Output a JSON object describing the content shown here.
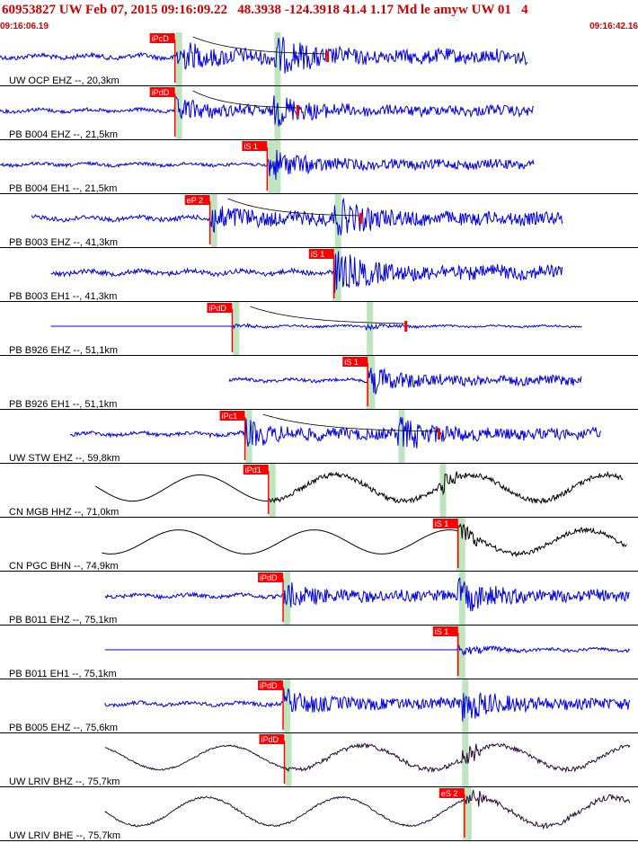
{
  "header": {
    "title": "60953827 UW Feb 07, 2015 09:16:09.22   48.3938 -124.3918 41.4 1.17 Md le amyw UW 01   4",
    "time_start": "09:16:06.19",
    "time_end": "09:16:42.16"
  },
  "colors": {
    "header_text": "#cc0000",
    "pick_box": "#ff0000",
    "pick_text": "#ffffff",
    "waveform_blue": "#0000dd",
    "waveform_black": "#000000",
    "waveform_purple": "#2a0a3a",
    "window_highlight": "#bfe5bf",
    "coda_line": "#000000",
    "separator": "#000000"
  },
  "chart_data": {
    "type": "line",
    "title": "60953827 UW Feb 07, 2015 09:16:09.22",
    "x_range_label": [
      "09:16:06.19",
      "09:16:42.16"
    ],
    "traces": [
      {
        "label": "UW OCP EHZ --, 20,3km",
        "color": "waveform_blue",
        "style": "hf",
        "start": 0.0,
        "end": 0.83,
        "pick_label": "iPcD",
        "pick": 0.275,
        "s": 0.43,
        "coda": true,
        "coda_mark": 0.515,
        "amp": 0.8
      },
      {
        "label": "PB B004 EHZ --, 21,5km",
        "color": "waveform_blue",
        "style": "hf",
        "start": 0.0,
        "end": 0.84,
        "pick_label": "iPdD",
        "pick": 0.275,
        "s": 0.43,
        "coda": true,
        "coda_mark": 0.468,
        "amp": 0.6
      },
      {
        "label": "PB B004 EH1 --, 21,5km",
        "color": "waveform_blue",
        "style": "hf",
        "start": 0.0,
        "end": 0.84,
        "pick_label": "iS 1",
        "pick": 0.42,
        "s": 0.43,
        "coda": false,
        "coda_mark": null,
        "amp": 0.55
      },
      {
        "label": "PB B003 EHZ --, 41,3km",
        "color": "waveform_blue",
        "style": "hf",
        "start": 0.05,
        "end": 0.885,
        "pick_label": "eP 2",
        "pick": 0.33,
        "s": 0.525,
        "coda": true,
        "coda_mark": 0.567,
        "amp": 0.75
      },
      {
        "label": "PB B003 EH1 --, 41,3km",
        "color": "waveform_blue",
        "style": "hf",
        "start": 0.08,
        "end": 0.885,
        "pick_label": "iS 1",
        "pick": 0.525,
        "s": 0.525,
        "coda": false,
        "coda_mark": null,
        "amp": 0.8
      },
      {
        "label": "PB B926 EHZ --, 51,1km",
        "color": "waveform_blue",
        "style": "flat",
        "start": 0.08,
        "end": 0.915,
        "pick_label": "iPdD",
        "pick": 0.365,
        "s": 0.575,
        "coda": true,
        "coda_mark": 0.638,
        "amp": 0.3
      },
      {
        "label": "PB B926 EH1 --, 51,1km",
        "color": "waveform_blue",
        "style": "hf",
        "start": 0.36,
        "end": 0.915,
        "pick_label": "iS 1",
        "pick": 0.578,
        "s": 0.578,
        "coda": false,
        "coda_mark": null,
        "amp": 0.55
      },
      {
        "label": "UW STW EHZ --, 59,8km",
        "color": "waveform_blue",
        "style": "hf",
        "start": 0.11,
        "end": 0.945,
        "pick_label": "iPc1",
        "pick": 0.385,
        "s": 0.625,
        "coda": true,
        "coda_mark": 0.69,
        "amp": 0.65
      },
      {
        "label": "CN MGB HHZ --, 71,0km",
        "color": "waveform_black",
        "style": "lp",
        "start": 0.15,
        "end": 0.98,
        "pick_label": "iPd1",
        "pick": 0.422,
        "s": 0.69,
        "coda": false,
        "coda_mark": null,
        "amp": 0.6
      },
      {
        "label": "CN PGC BHN --, 74,9km",
        "color": "waveform_black",
        "style": "lp",
        "start": 0.16,
        "end": 0.985,
        "pick_label": "iS 1",
        "pick": 0.72,
        "s": 0.72,
        "coda": false,
        "coda_mark": null,
        "amp": 0.55
      },
      {
        "label": "PB B011 EHZ --, 75,1km",
        "color": "waveform_blue",
        "style": "hf",
        "start": 0.165,
        "end": 0.99,
        "pick_label": "iPdD",
        "pick": 0.445,
        "s": 0.72,
        "coda": false,
        "coda_mark": null,
        "amp": 0.65
      },
      {
        "label": "PB B011 EH1 --, 75,1km",
        "color": "waveform_blue",
        "style": "flat",
        "start": 0.165,
        "end": 0.99,
        "pick_label": "iS 1",
        "pick": 0.72,
        "s": 0.72,
        "coda": false,
        "coda_mark": null,
        "amp": 0.5
      },
      {
        "label": "PB B005 EHZ --, 75,6km",
        "color": "waveform_blue",
        "style": "hf",
        "start": 0.165,
        "end": 0.99,
        "pick_label": "iPdD",
        "pick": 0.445,
        "s": 0.725,
        "coda": false,
        "coda_mark": null,
        "amp": 0.65
      },
      {
        "label": "UW LRIV BHZ --, 75,7km",
        "color": "waveform_purple",
        "style": "lpn",
        "start": 0.165,
        "end": 0.99,
        "pick_label": "iPdD",
        "pick": 0.447,
        "s": 0.725,
        "coda": false,
        "coda_mark": null,
        "amp": 0.55
      },
      {
        "label": "UW LRIV BHE --, 75,7km",
        "color": "waveform_purple",
        "style": "lpn",
        "start": 0.165,
        "end": 0.99,
        "pick_label": "eS 2",
        "pick": 0.73,
        "s": 0.73,
        "coda": false,
        "coda_mark": null,
        "amp": 0.65
      }
    ]
  }
}
